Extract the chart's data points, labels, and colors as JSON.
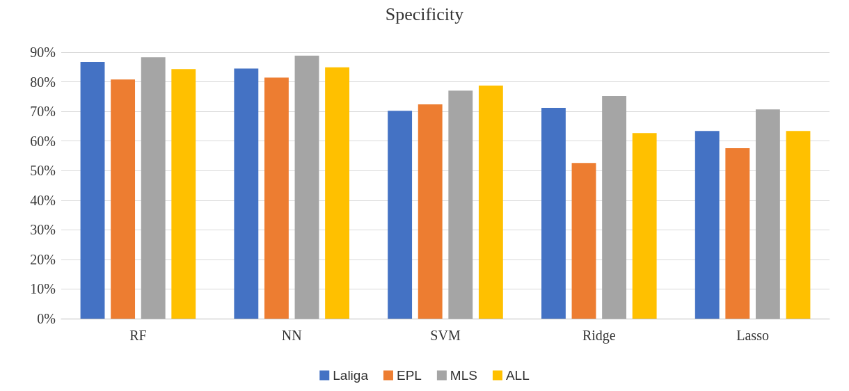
{
  "chart_data": {
    "type": "bar",
    "title": "Specificity",
    "categories": [
      "RF",
      "NN",
      "SVM",
      "Ridge",
      "Lasso"
    ],
    "series": [
      {
        "name": "Laliga",
        "color": "#4472c4",
        "values": [
          86.7,
          84.5,
          70.2,
          71.2,
          63.4
        ]
      },
      {
        "name": "EPL",
        "color": "#ed7d31",
        "values": [
          80.8,
          81.4,
          72.4,
          52.6,
          57.6
        ]
      },
      {
        "name": "MLS",
        "color": "#a5a5a5",
        "values": [
          88.3,
          88.8,
          77.0,
          75.2,
          70.7
        ]
      },
      {
        "name": "ALL",
        "color": "#ffc000",
        "values": [
          84.3,
          84.9,
          78.7,
          62.7,
          63.4
        ]
      }
    ],
    "ylim": [
      0,
      90
    ],
    "yticks": [
      {
        "value": 0,
        "label": "0%"
      },
      {
        "value": 10,
        "label": "10%"
      },
      {
        "value": 20,
        "label": "20%"
      },
      {
        "value": 30,
        "label": "30%"
      },
      {
        "value": 40,
        "label": "40%"
      },
      {
        "value": 50,
        "label": "50%"
      },
      {
        "value": 60,
        "label": "60%"
      },
      {
        "value": 70,
        "label": "70%"
      },
      {
        "value": 80,
        "label": "80%"
      },
      {
        "value": 90,
        "label": "90%"
      }
    ],
    "grid": "y",
    "legend": "bottom"
  }
}
